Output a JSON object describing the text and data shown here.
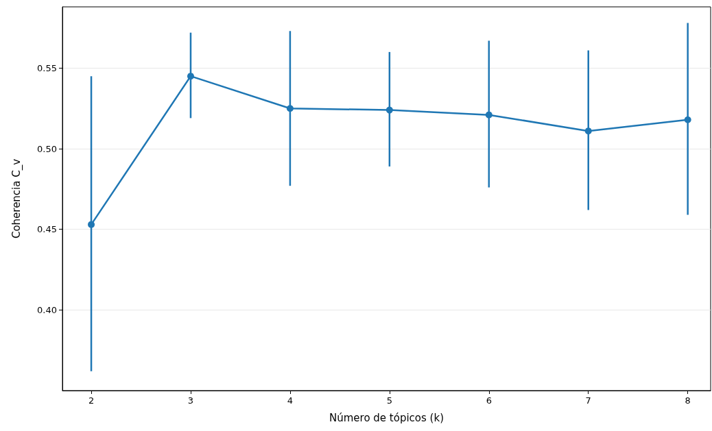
{
  "chart_data": {
    "type": "line",
    "xlabel": "Número de tópicos (k)",
    "ylabel": "Coherencia C_v",
    "x": [
      2,
      3,
      4,
      5,
      6,
      7,
      8
    ],
    "values": [
      0.453,
      0.545,
      0.525,
      0.524,
      0.521,
      0.511,
      0.518
    ],
    "errors": [
      [
        0.362,
        0.545
      ],
      [
        0.519,
        0.572
      ],
      [
        0.477,
        0.573
      ],
      [
        0.489,
        0.56
      ],
      [
        0.476,
        0.567
      ],
      [
        0.462,
        0.561
      ],
      [
        0.459,
        0.578
      ]
    ],
    "color": "#1f77b4",
    "marker": "circle",
    "line_style": "solid",
    "grid": "y",
    "xlim": [
      1.71,
      8.23
    ],
    "xticks": [
      2,
      3,
      4,
      5,
      6,
      7,
      8
    ],
    "ylim": [
      0.35,
      0.588
    ],
    "yticks": [
      {
        "value": 0.4,
        "label": "0.40"
      },
      0.45,
      {
        "value": 0.5,
        "label": "0.50"
      },
      0.55
    ]
  }
}
